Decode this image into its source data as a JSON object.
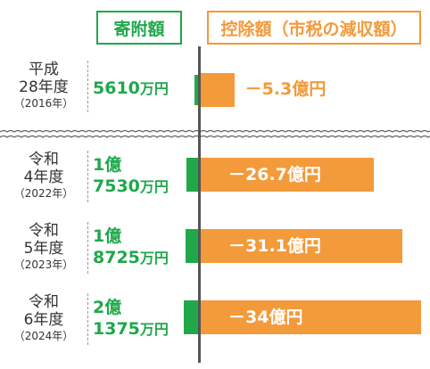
{
  "headers": {
    "donation": "寄附額",
    "deduction": "控除額（市税の減収額）"
  },
  "chart_data": {
    "type": "bar",
    "title": "",
    "series": [
      {
        "name": "寄附額",
        "values": [
          56.1,
          175.3,
          187.25,
          213.75
        ]
      },
      {
        "name": "控除額（市税の減収額）",
        "values": [
          -5.3,
          -26.7,
          -31.1,
          -34.0
        ]
      }
    ],
    "rows": [
      {
        "era": "平成",
        "year": "28年度",
        "western": "（2016年）",
        "donation_line1": "5610",
        "donation_unit1": "万円",
        "donation_line2": "",
        "donation_unit2": "",
        "deduction_label": "－5.3億円"
      },
      {
        "era": "令和",
        "year": "4年度",
        "western": "（2022年）",
        "donation_line1": "1億",
        "donation_unit1": "",
        "donation_line2": "7530",
        "donation_unit2": "万円",
        "deduction_label": "－26.7億円"
      },
      {
        "era": "令和",
        "year": "5年度",
        "western": "（2023年）",
        "donation_line1": "1億",
        "donation_unit1": "",
        "donation_line2": "8725",
        "donation_unit2": "万円",
        "deduction_label": "－31.1億円"
      },
      {
        "era": "令和",
        "year": "6年度",
        "western": "（2024年）",
        "donation_line1": "2億",
        "donation_unit1": "",
        "donation_line2": "1375",
        "donation_unit2": "万円",
        "deduction_label": "－34億円"
      }
    ],
    "colors": {
      "donation": "#1fa84a",
      "deduction": "#f39a3a"
    },
    "axis_break": true
  }
}
